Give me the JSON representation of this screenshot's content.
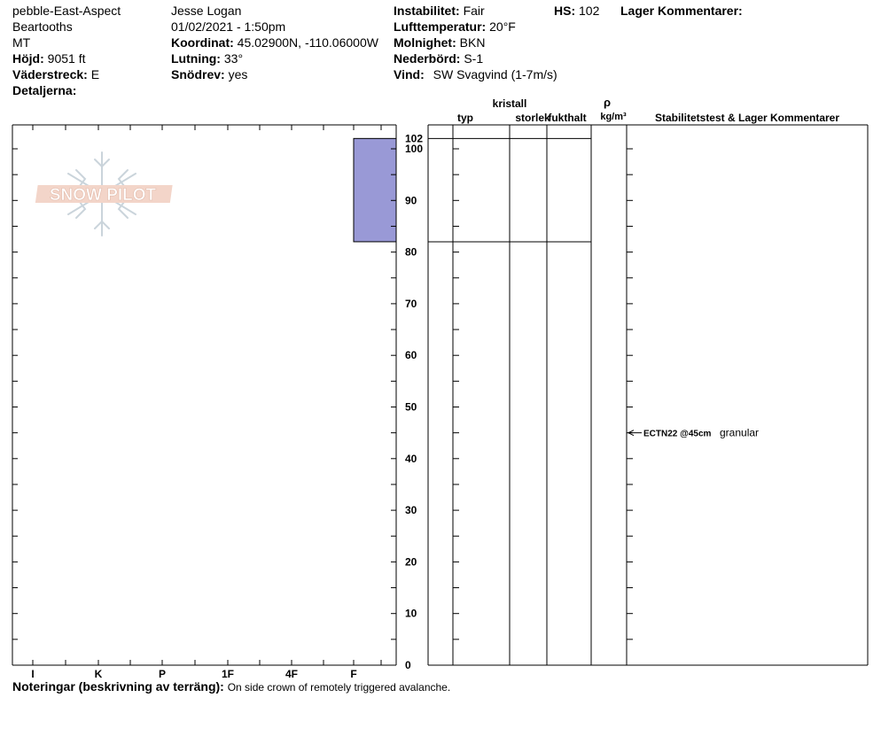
{
  "header": {
    "site_name": "pebble-East-Aspect",
    "range": "Beartooths",
    "state": "MT",
    "elevation_label": "Höjd:",
    "elevation_value": "9051 ft",
    "aspect_label": "Väderstreck:",
    "aspect_value": "E",
    "details_label": "Detaljerna:",
    "observer": "Jesse Logan",
    "datetime": "01/02/2021 - 1:50pm",
    "coords_label": "Koordinat:",
    "coords_value": "45.02900N, -110.06000W",
    "slope_label": "Lutning:",
    "slope_value": "33°",
    "drift_label": "Snödrev:",
    "drift_value": "yes",
    "stability_label": "Instabilitet:",
    "stability_value": "Fair",
    "airtemp_label": "Lufttemperatur:",
    "airtemp_value": "20°F",
    "sky_label": "Molnighet:",
    "sky_value": "BKN",
    "precip_label": "Nederbörd:",
    "precip_value": "S-1",
    "wind_label": "Vind:",
    "wind_value": "SW Svagvind (1-7m/s)",
    "hs_label": "HS:",
    "hs_value": "102",
    "layer_comments_label": "Lager Kommentarer:"
  },
  "columns": {
    "typ": "typ",
    "kristall": "kristall",
    "storlek": "storlek",
    "fukthalt": "fukthalt",
    "rho": "ρ",
    "rho_unit": "kg/m³",
    "stability": "Stabilitetstest & Lager Kommentarer"
  },
  "logo_text": "SNOW PILOT",
  "notes": {
    "label": "Noteringar (beskrivning av terräng):",
    "text": "On side crown of remotely triggered avalanche."
  },
  "chart_data": {
    "type": "bar",
    "description_axis": "hardness vs height (cm)",
    "hardness_categories": [
      "I",
      "K",
      "P",
      "1F",
      "4F",
      "F"
    ],
    "height_ticks": [
      0,
      10,
      20,
      30,
      40,
      50,
      60,
      70,
      80,
      90,
      100
    ],
    "hs_tick": 102,
    "ylim": [
      0,
      102
    ],
    "layers": [
      {
        "top": 102,
        "bottom": 82,
        "hardness": "F",
        "color": "#9999d6"
      }
    ],
    "layer_boundaries": [
      102,
      82
    ],
    "stability_tests": [
      {
        "height": 45,
        "result": "ECTN22 @45cm",
        "comment": "granular"
      }
    ]
  }
}
